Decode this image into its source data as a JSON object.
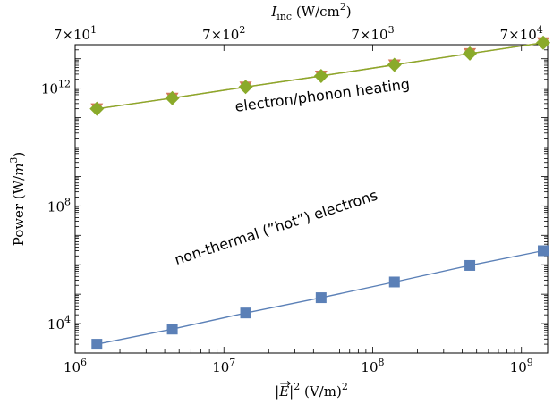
{
  "chart_data": {
    "type": "scatter",
    "x_scale": "log",
    "y_scale": "log",
    "xlim": [
      1000000.0,
      1500000000.0
    ],
    "ylim": [
      1000.0,
      30000000000000.0
    ],
    "x_ticks": [
      {
        "value": 1000000.0,
        "base": "10",
        "exp": "6"
      },
      {
        "value": 10000000.0,
        "base": "10",
        "exp": "7"
      },
      {
        "value": 100000000.0,
        "base": "10",
        "exp": "8"
      },
      {
        "value": 1000000000.0,
        "base": "10",
        "exp": "9"
      }
    ],
    "y_ticks": [
      {
        "value": 10000.0,
        "base": "10",
        "exp": "4"
      },
      {
        "value": 100000000.0,
        "base": "10",
        "exp": "8"
      },
      {
        "value": 1000000000000.0,
        "base": "10",
        "exp": "12"
      }
    ],
    "top_axis": {
      "title_main": "I",
      "title_sub": "inc",
      "title_unit_pre": " (W/cm",
      "title_unit_sup": "2",
      "title_unit_post": ")",
      "ticks": [
        {
          "label": "7×10",
          "exp": "1",
          "x_value": 1000000.0
        },
        {
          "label": "7×10",
          "exp": "2",
          "x_value": 10000000.0
        },
        {
          "label": "7×10",
          "exp": "3",
          "x_value": 100000000.0
        },
        {
          "label": "7×10",
          "exp": "4",
          "x_value": 1000000000.0
        }
      ]
    },
    "xlabel": {
      "pre": "|",
      "var": "E",
      "post": "|",
      "sup": "2",
      "unit": " (V/m)",
      "unit_sup": "2"
    },
    "ylabel": {
      "pre": "Power (W/",
      "var": "m",
      "sup": "3",
      "post": ")"
    },
    "grid": false,
    "series": [
      {
        "color": "#d4785a",
        "marker": "triangle-down",
        "x": [
          1400000.0,
          4500000.0,
          14000000.0,
          45000000.0,
          140000000.0,
          450000000.0,
          1400000000.0
        ],
        "y": [
          200000000000.0,
          460000000000.0,
          1100000000000.0,
          2600000000000.0,
          6200000000000.0,
          15000000000000.0,
          35000000000000.0
        ]
      },
      {
        "color": "#8aaa2a",
        "marker": "diamond",
        "x": [
          1400000.0,
          4500000.0,
          14000000.0,
          45000000.0,
          140000000.0,
          450000000.0,
          1400000000.0
        ],
        "y": [
          200000000000.0,
          460000000000.0,
          1100000000000.0,
          2600000000000.0,
          6200000000000.0,
          15000000000000.0,
          35000000000000.0
        ]
      },
      {
        "color": "#5b80b7",
        "marker": "square",
        "x": [
          1400000.0,
          4500000.0,
          14000000.0,
          45000000.0,
          140000000.0,
          450000000.0,
          1400000000.0
        ],
        "y": [
          2000.0,
          6500.0,
          23000.0,
          76000.0,
          260000.0,
          950000.0,
          3000000.0
        ]
      }
    ],
    "annotations": [
      {
        "text": "electron/phonon heating",
        "x": 12000000.0,
        "y": 160000000000.0,
        "angle": -7.5
      },
      {
        "text": "non-thermal (”hot”) electrons",
        "x": 4800000.0,
        "y": 1000000.0,
        "angle": -18
      }
    ]
  }
}
